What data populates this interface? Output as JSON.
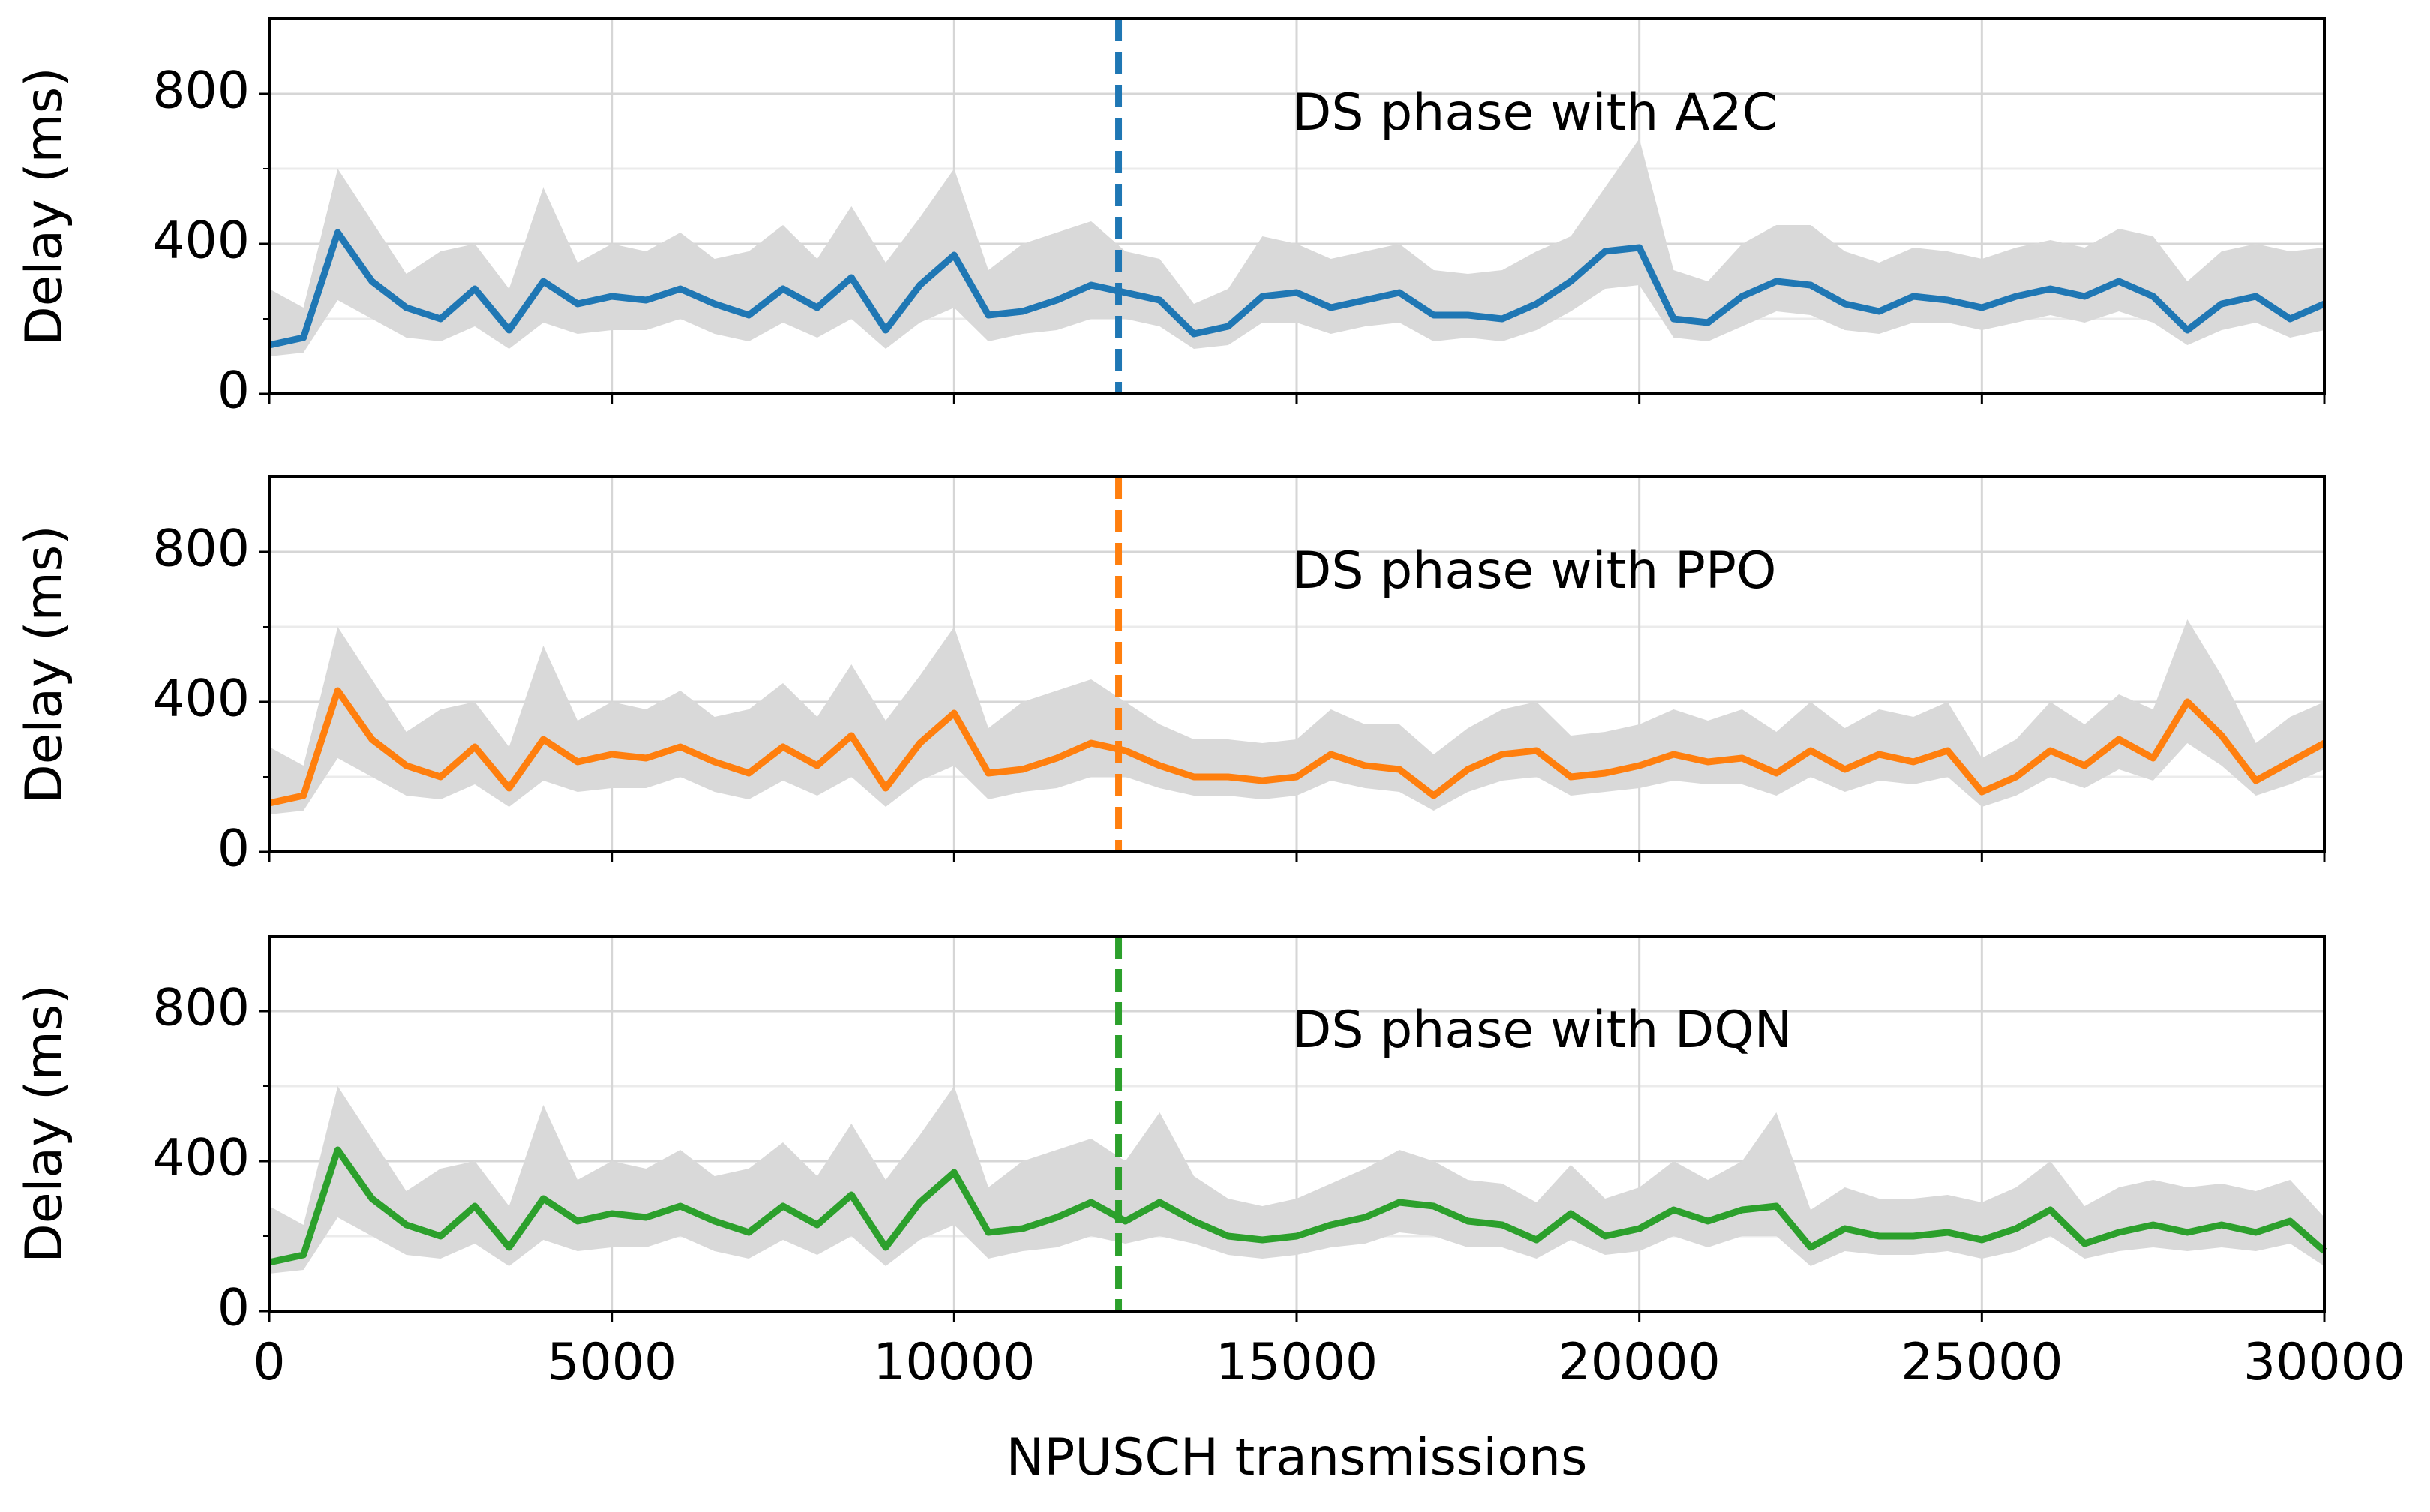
{
  "chart_data": [
    {
      "type": "line",
      "annotation": "DS phase with A2C",
      "ylabel": "Delay (ms)",
      "color": "#1f77b4",
      "band_color": "#d9d9d9",
      "vline_x": 12400,
      "grid": true,
      "show_xtick_labels": false,
      "xlim": [
        0,
        30000
      ],
      "xticks": [
        0,
        5000,
        10000,
        15000,
        20000,
        25000,
        30000
      ],
      "ylim": [
        0,
        1000
      ],
      "yticks": [
        0,
        400,
        800
      ],
      "yticks_minor": [
        200,
        600
      ],
      "x": [
        0,
        500,
        1000,
        1500,
        2000,
        2500,
        3000,
        3500,
        4000,
        4500,
        5000,
        5500,
        6000,
        6500,
        7000,
        7500,
        8000,
        8500,
        9000,
        9500,
        10000,
        10500,
        11000,
        11500,
        12000,
        12500,
        13000,
        13500,
        14000,
        14500,
        15000,
        15500,
        16000,
        16500,
        17000,
        17500,
        18000,
        18500,
        19000,
        19500,
        20000,
        20500,
        21000,
        21500,
        22000,
        22500,
        23000,
        23500,
        24000,
        24500,
        25000,
        25500,
        26000,
        26500,
        27000,
        27500,
        28000,
        28500,
        29000,
        29500,
        30000
      ],
      "values": [
        130,
        150,
        430,
        300,
        230,
        200,
        280,
        170,
        300,
        240,
        260,
        250,
        280,
        240,
        210,
        280,
        230,
        310,
        170,
        290,
        370,
        210,
        220,
        250,
        290,
        270,
        250,
        160,
        180,
        260,
        270,
        230,
        250,
        270,
        210,
        210,
        200,
        240,
        300,
        380,
        390,
        200,
        190,
        260,
        300,
        290,
        240,
        220,
        260,
        250,
        230,
        260,
        280,
        260,
        300,
        260,
        170,
        240,
        260,
        200,
        240
      ],
      "band_lower": [
        100,
        110,
        250,
        200,
        150,
        140,
        180,
        120,
        190,
        160,
        170,
        170,
        200,
        160,
        140,
        190,
        150,
        200,
        120,
        190,
        230,
        140,
        160,
        170,
        200,
        200,
        180,
        120,
        130,
        190,
        190,
        160,
        180,
        190,
        140,
        150,
        140,
        170,
        220,
        280,
        290,
        150,
        140,
        180,
        220,
        210,
        170,
        160,
        190,
        190,
        170,
        190,
        210,
        190,
        220,
        190,
        130,
        170,
        190,
        150,
        170
      ],
      "band_upper": [
        280,
        230,
        600,
        460,
        320,
        380,
        400,
        280,
        550,
        350,
        400,
        380,
        430,
        360,
        380,
        450,
        360,
        500,
        350,
        470,
        600,
        330,
        400,
        430,
        460,
        380,
        360,
        240,
        280,
        420,
        400,
        360,
        380,
        400,
        330,
        320,
        330,
        380,
        420,
        550,
        680,
        330,
        300,
        400,
        450,
        450,
        380,
        350,
        390,
        380,
        360,
        390,
        410,
        390,
        440,
        420,
        300,
        380,
        400,
        380,
        390
      ]
    },
    {
      "type": "line",
      "annotation": "DS phase with PPO",
      "ylabel": "Delay (ms)",
      "color": "#ff7f0e",
      "band_color": "#d9d9d9",
      "vline_x": 12400,
      "grid": true,
      "show_xtick_labels": false,
      "xlim": [
        0,
        30000
      ],
      "xticks": [
        0,
        5000,
        10000,
        15000,
        20000,
        25000,
        30000
      ],
      "ylim": [
        0,
        1000
      ],
      "yticks": [
        0,
        400,
        800
      ],
      "yticks_minor": [
        200,
        600
      ],
      "x": [
        0,
        500,
        1000,
        1500,
        2000,
        2500,
        3000,
        3500,
        4000,
        4500,
        5000,
        5500,
        6000,
        6500,
        7000,
        7500,
        8000,
        8500,
        9000,
        9500,
        10000,
        10500,
        11000,
        11500,
        12000,
        12500,
        13000,
        13500,
        14000,
        14500,
        15000,
        15500,
        16000,
        16500,
        17000,
        17500,
        18000,
        18500,
        19000,
        19500,
        20000,
        20500,
        21000,
        21500,
        22000,
        22500,
        23000,
        23500,
        24000,
        24500,
        25000,
        25500,
        26000,
        26500,
        27000,
        27500,
        28000,
        28500,
        29000,
        29500,
        30000
      ],
      "values": [
        130,
        150,
        430,
        300,
        230,
        200,
        280,
        170,
        300,
        240,
        260,
        250,
        280,
        240,
        210,
        280,
        230,
        310,
        170,
        290,
        370,
        210,
        220,
        250,
        290,
        270,
        230,
        200,
        200,
        190,
        200,
        260,
        230,
        220,
        150,
        220,
        260,
        270,
        200,
        210,
        230,
        260,
        240,
        250,
        210,
        270,
        220,
        260,
        240,
        270,
        160,
        200,
        270,
        230,
        300,
        250,
        400,
        310,
        190,
        240,
        290
      ],
      "band_lower": [
        100,
        110,
        250,
        200,
        150,
        140,
        180,
        120,
        190,
        160,
        170,
        170,
        200,
        160,
        140,
        190,
        150,
        200,
        120,
        190,
        230,
        140,
        160,
        170,
        200,
        200,
        170,
        150,
        150,
        140,
        150,
        190,
        170,
        160,
        110,
        160,
        190,
        200,
        150,
        160,
        170,
        190,
        180,
        180,
        150,
        200,
        160,
        190,
        180,
        200,
        120,
        150,
        200,
        170,
        220,
        190,
        290,
        230,
        150,
        180,
        220
      ],
      "band_upper": [
        280,
        230,
        600,
        460,
        320,
        380,
        400,
        280,
        550,
        350,
        400,
        380,
        430,
        360,
        380,
        450,
        360,
        500,
        350,
        470,
        600,
        330,
        400,
        430,
        460,
        400,
        340,
        300,
        300,
        290,
        300,
        380,
        340,
        340,
        260,
        330,
        380,
        400,
        310,
        320,
        340,
        380,
        350,
        380,
        320,
        400,
        330,
        380,
        360,
        400,
        250,
        300,
        400,
        340,
        420,
        380,
        620,
        470,
        290,
        360,
        400
      ]
    },
    {
      "type": "line",
      "annotation": "DS phase with DQN",
      "ylabel": "Delay (ms)",
      "xlabel": "NPUSCH transmissions",
      "color": "#2ca02c",
      "band_color": "#d9d9d9",
      "vline_x": 12400,
      "grid": true,
      "show_xtick_labels": true,
      "xlim": [
        0,
        30000
      ],
      "xticks": [
        0,
        5000,
        10000,
        15000,
        20000,
        25000,
        30000
      ],
      "ylim": [
        0,
        1000
      ],
      "yticks": [
        0,
        400,
        800
      ],
      "yticks_minor": [
        200,
        600
      ],
      "x": [
        0,
        500,
        1000,
        1500,
        2000,
        2500,
        3000,
        3500,
        4000,
        4500,
        5000,
        5500,
        6000,
        6500,
        7000,
        7500,
        8000,
        8500,
        9000,
        9500,
        10000,
        10500,
        11000,
        11500,
        12000,
        12500,
        13000,
        13500,
        14000,
        14500,
        15000,
        15500,
        16000,
        16500,
        17000,
        17500,
        18000,
        18500,
        19000,
        19500,
        20000,
        20500,
        21000,
        21500,
        22000,
        22500,
        23000,
        23500,
        24000,
        24500,
        25000,
        25500,
        26000,
        26500,
        27000,
        27500,
        28000,
        28500,
        29000,
        29500,
        30000
      ],
      "values": [
        130,
        150,
        430,
        300,
        230,
        200,
        280,
        170,
        300,
        240,
        260,
        250,
        280,
        240,
        210,
        280,
        230,
        310,
        170,
        290,
        370,
        210,
        220,
        250,
        290,
        240,
        290,
        240,
        200,
        190,
        200,
        230,
        250,
        290,
        280,
        240,
        230,
        190,
        260,
        200,
        220,
        270,
        240,
        270,
        280,
        170,
        220,
        200,
        200,
        210,
        190,
        220,
        270,
        180,
        210,
        230,
        210,
        230,
        210,
        240,
        160
      ],
      "band_lower": [
        100,
        110,
        250,
        200,
        150,
        140,
        180,
        120,
        190,
        160,
        170,
        170,
        200,
        160,
        140,
        190,
        150,
        200,
        120,
        190,
        230,
        140,
        160,
        170,
        200,
        180,
        200,
        180,
        150,
        140,
        150,
        170,
        180,
        210,
        200,
        170,
        170,
        140,
        190,
        150,
        160,
        200,
        170,
        200,
        200,
        120,
        160,
        150,
        150,
        160,
        140,
        160,
        200,
        140,
        160,
        170,
        160,
        170,
        160,
        180,
        120
      ],
      "band_upper": [
        280,
        230,
        600,
        460,
        320,
        380,
        400,
        280,
        550,
        350,
        400,
        380,
        430,
        360,
        380,
        450,
        360,
        500,
        350,
        470,
        600,
        330,
        400,
        430,
        460,
        400,
        530,
        360,
        300,
        280,
        300,
        340,
        380,
        430,
        400,
        350,
        340,
        290,
        390,
        300,
        330,
        400,
        350,
        400,
        530,
        270,
        330,
        300,
        300,
        310,
        290,
        330,
        400,
        280,
        330,
        350,
        330,
        340,
        320,
        350,
        250
      ]
    }
  ]
}
